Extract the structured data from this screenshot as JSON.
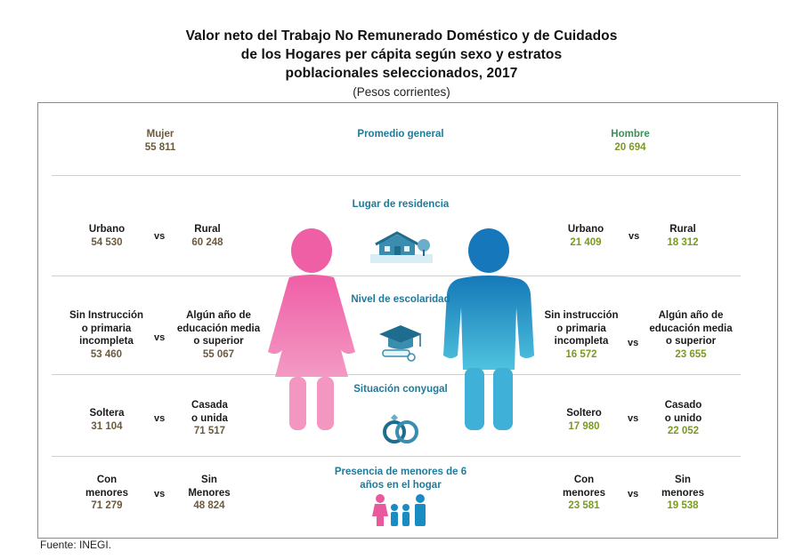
{
  "title_lines": [
    "Valor neto del Trabajo No Remunerado Doméstico y de Cuidados",
    "de los Hogares per cápita según sexo y estratos",
    "poblacionales seleccionados, 2017"
  ],
  "subtitle": "(Pesos corrientes)",
  "source": "Fuente: INEGI.",
  "vs_label": "vs",
  "colors": {
    "mujer": "#e85a9b",
    "hombre": "#1a8cc4",
    "accent": "#1f7a9a"
  },
  "center": {
    "promedio": [
      "Promedio",
      "general"
    ],
    "residencia": [
      "Lugar de",
      "residencia"
    ],
    "escolaridad": [
      "Nivel de",
      "escolaridad"
    ],
    "conyugal": [
      "Situación",
      "conyugal"
    ],
    "menores": [
      "Presencia de menores",
      "de 6 años en el hogar"
    ]
  },
  "mujer": {
    "label": "Mujer",
    "promedio": "55 811",
    "urbano": {
      "label": "Urbano",
      "value": "54 530"
    },
    "rural": {
      "label": "Rural",
      "value": "60 248"
    },
    "sin_instruccion": {
      "label": [
        "Sin Instrucción",
        "o primaria",
        "incompleta"
      ],
      "value": "53 460"
    },
    "media_superior": {
      "label": [
        "Algún año de",
        "educación media",
        "o superior"
      ],
      "value": "55 067"
    },
    "soltera": {
      "label": "Soltera",
      "value": "31 104"
    },
    "casada": {
      "label": [
        "Casada",
        "o unida"
      ],
      "value": "71 517"
    },
    "con_menores": {
      "label": [
        "Con",
        "menores"
      ],
      "value": "71 279"
    },
    "sin_menores": {
      "label": [
        "Sin",
        "Menores"
      ],
      "value": "48 824"
    }
  },
  "hombre": {
    "label": "Hombre",
    "promedio": "20 694",
    "urbano": {
      "label": "Urbano",
      "value": "21 409"
    },
    "rural": {
      "label": "Rural",
      "value": "18 312"
    },
    "sin_instruccion": {
      "label": [
        "Sin instrucción",
        "o primaria",
        "incompleta"
      ],
      "value": "16 572"
    },
    "media_superior": {
      "label": [
        "Algún año de",
        "educación media",
        "o superior"
      ],
      "value": "23 655"
    },
    "soltero": {
      "label": "Soltero",
      "value": "17 980"
    },
    "casado": {
      "label": [
        "Casado",
        "o unido"
      ],
      "value": "22 052"
    },
    "con_menores": {
      "label": [
        "Con",
        "menores"
      ],
      "value": "23 581"
    },
    "sin_menores": {
      "label": [
        "Sin",
        "menores"
      ],
      "value": "19 538"
    }
  }
}
